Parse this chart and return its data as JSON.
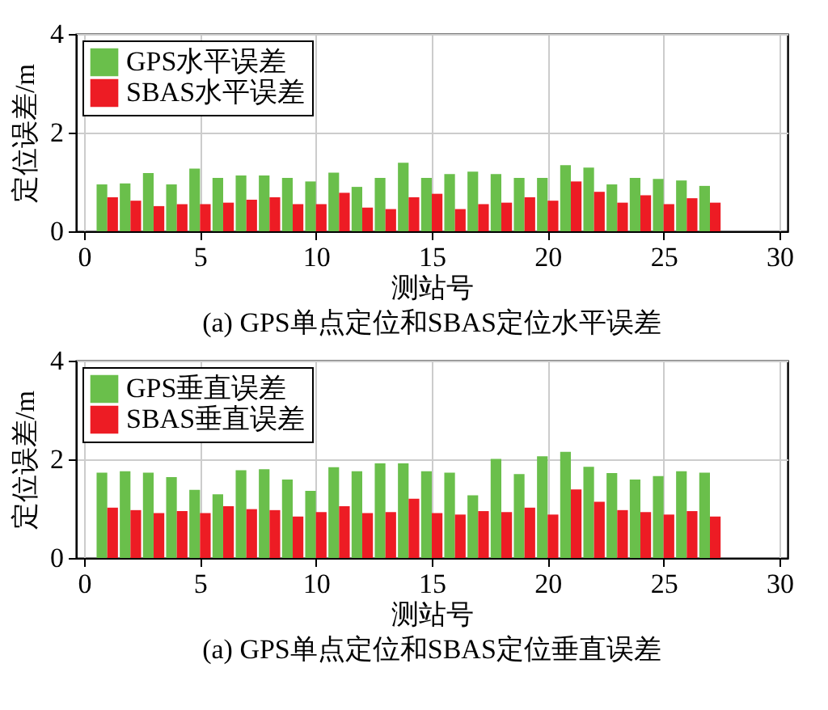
{
  "chart_data": [
    {
      "type": "bar",
      "title": "(a) GPS单点定位和SBAS定位水平误差",
      "xlabel": "测站号",
      "ylabel": "定位误差/m",
      "x": [
        1,
        2,
        3,
        4,
        5,
        6,
        7,
        8,
        9,
        10,
        11,
        12,
        13,
        14,
        15,
        16,
        17,
        18,
        19,
        20,
        21,
        22,
        23,
        24,
        25,
        26,
        27
      ],
      "xlim": [
        0,
        30
      ],
      "xticks": [
        0,
        5,
        10,
        15,
        20,
        25,
        30
      ],
      "ylim": [
        0,
        4
      ],
      "yticks": [
        0,
        2,
        4
      ],
      "grid": true,
      "legend": "top left",
      "series": [
        {
          "name": "GPS水平误差",
          "color": "#6abf4b",
          "values": [
            0.95,
            0.97,
            1.18,
            0.95,
            1.27,
            1.08,
            1.13,
            1.13,
            1.08,
            1.01,
            1.19,
            0.9,
            1.08,
            1.39,
            1.08,
            1.16,
            1.21,
            1.16,
            1.08,
            1.08,
            1.34,
            1.29,
            0.95,
            1.08,
            1.06,
            1.03,
            0.92
          ]
        },
        {
          "name": "SBAS水平误差",
          "color": "#ed1c24",
          "values": [
            0.69,
            0.62,
            0.51,
            0.55,
            0.55,
            0.58,
            0.64,
            0.69,
            0.55,
            0.55,
            0.78,
            0.48,
            0.45,
            0.69,
            0.76,
            0.45,
            0.55,
            0.58,
            0.69,
            0.62,
            1.01,
            0.8,
            0.58,
            0.73,
            0.55,
            0.67,
            0.58
          ]
        }
      ]
    },
    {
      "type": "bar",
      "title": "(a) GPS单点定位和SBAS定位垂直误差",
      "xlabel": "测站号",
      "ylabel": "定位误差/m",
      "x": [
        1,
        2,
        3,
        4,
        5,
        6,
        7,
        8,
        9,
        10,
        11,
        12,
        13,
        14,
        15,
        16,
        17,
        18,
        19,
        20,
        21,
        22,
        23,
        24,
        25,
        26,
        27
      ],
      "xlim": [
        0,
        30
      ],
      "xticks": [
        0,
        5,
        10,
        15,
        20,
        25,
        30
      ],
      "ylim": [
        0,
        4
      ],
      "yticks": [
        0,
        2,
        4
      ],
      "grid": true,
      "legend": "top left",
      "series": [
        {
          "name": "GPS垂直误差",
          "color": "#6abf4b",
          "values": [
            1.73,
            1.76,
            1.73,
            1.64,
            1.38,
            1.29,
            1.78,
            1.8,
            1.59,
            1.36,
            1.84,
            1.76,
            1.92,
            1.92,
            1.76,
            1.73,
            1.27,
            2.01,
            1.7,
            2.06,
            2.15,
            1.85,
            1.72,
            1.59,
            1.66,
            1.76,
            1.73
          ]
        },
        {
          "name": "SBAS垂直误差",
          "color": "#ed1c24",
          "values": [
            1.02,
            0.97,
            0.91,
            0.95,
            0.91,
            1.05,
            0.99,
            0.97,
            0.84,
            0.93,
            1.05,
            0.91,
            0.93,
            1.2,
            0.91,
            0.88,
            0.95,
            0.93,
            1.02,
            0.88,
            1.39,
            1.14,
            0.97,
            0.93,
            0.88,
            0.95,
            0.84
          ]
        }
      ]
    }
  ]
}
